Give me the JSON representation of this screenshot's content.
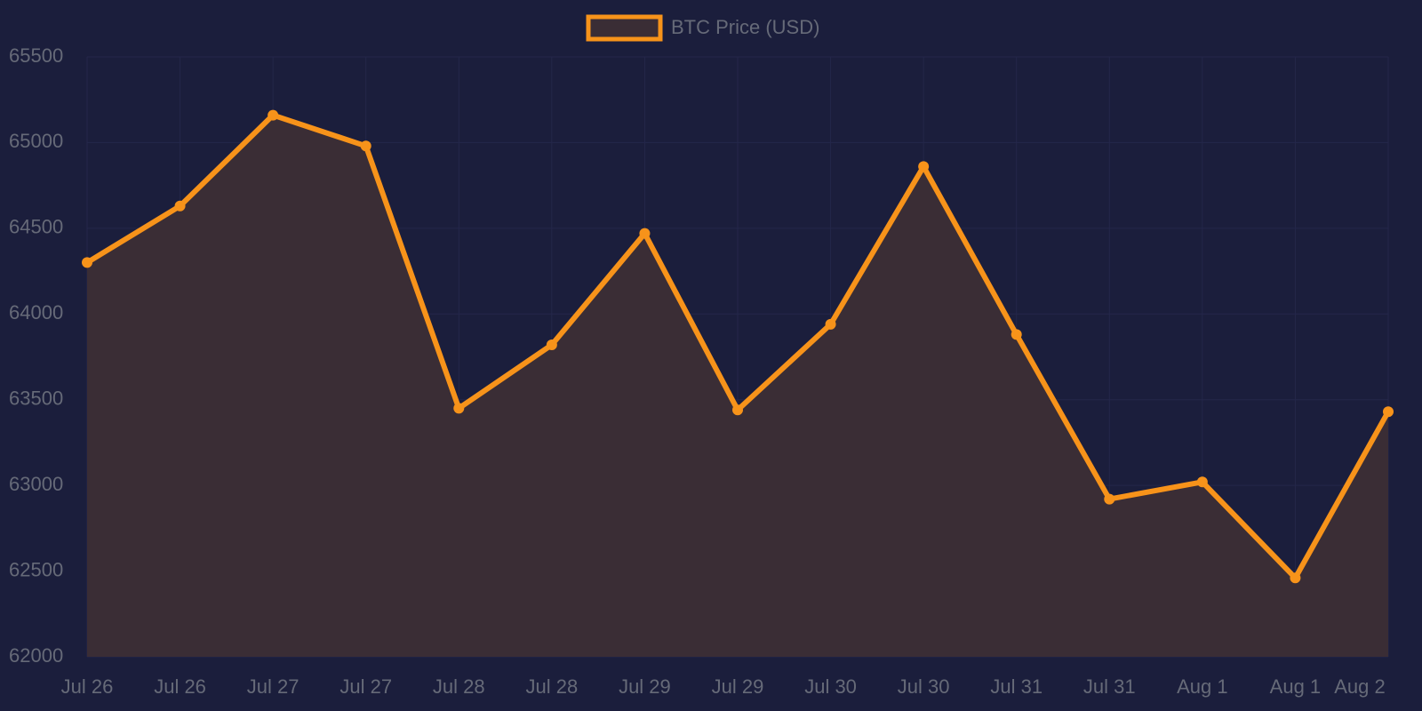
{
  "chart_data": {
    "type": "line",
    "categories": [
      "Jul 26",
      "Jul 26",
      "Jul 27",
      "Jul 27",
      "Jul 28",
      "Jul 28",
      "Jul 29",
      "Jul 29",
      "Jul 30",
      "Jul 30",
      "Jul 31",
      "Jul 31",
      "Aug 1",
      "Aug 1",
      "Aug 2"
    ],
    "series": [
      {
        "name": "BTC Price (USD)",
        "color": "#f7931a",
        "area_color": "#3a2d35",
        "values": [
          64300,
          64630,
          65160,
          64980,
          63450,
          63820,
          64470,
          63440,
          63940,
          64860,
          63880,
          62920,
          63020,
          62460,
          63430
        ]
      }
    ],
    "ylim": [
      62000,
      65500
    ],
    "yticks": [
      62000,
      62500,
      63000,
      63500,
      64000,
      64500,
      65000,
      65500
    ],
    "grid": true,
    "legend": "top"
  }
}
